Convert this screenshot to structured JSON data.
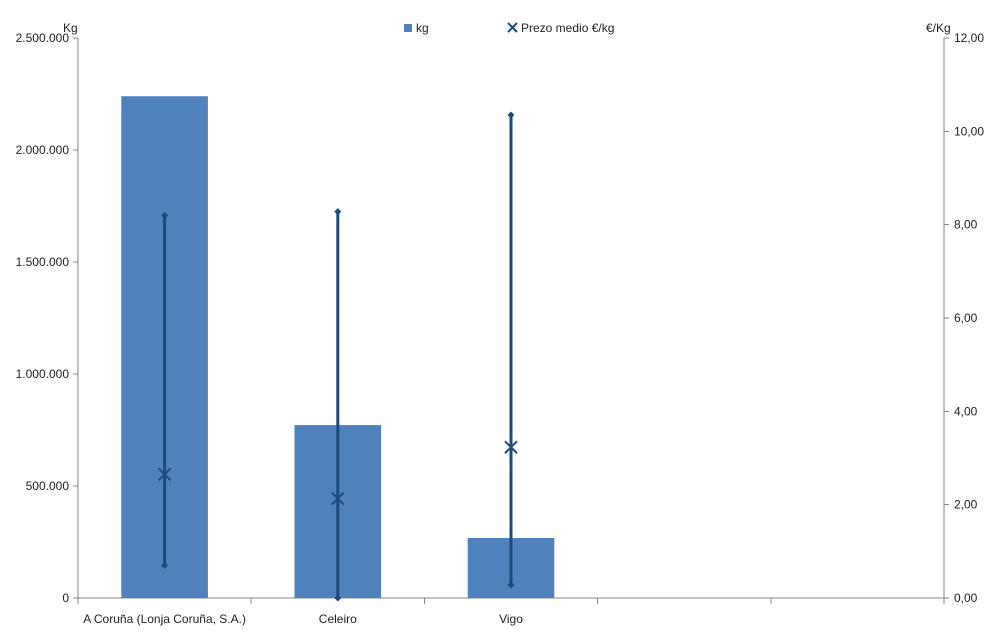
{
  "chart_data": {
    "type": "bar",
    "categories": [
      "A Coruña (Lonja Coruña, S.A.)",
      "Celeiro",
      "Vigo",
      "",
      ""
    ],
    "series": [
      {
        "name": "kg",
        "axis": "left",
        "kind": "bar",
        "color": "#4F81BD",
        "values": [
          2240000,
          772000,
          268000,
          null,
          null
        ]
      },
      {
        "name": "Prezo medio €/kg",
        "axis": "right",
        "kind": "marker",
        "marker": "x",
        "color": "#1F497D",
        "values": [
          2.65,
          2.13,
          3.23,
          null,
          null
        ],
        "min": [
          0.7,
          0.0,
          0.28,
          null,
          null
        ],
        "max": [
          8.2,
          8.28,
          10.35,
          null,
          null
        ]
      }
    ],
    "y_left": {
      "label": "Kg",
      "min": 0,
      "max": 2500000,
      "ticks": [
        0,
        500000,
        1000000,
        1500000,
        2000000,
        2500000
      ],
      "tick_labels": [
        "0",
        "500.000",
        "1.000.000",
        "1.500.000",
        "2.000.000",
        "2.500.000"
      ]
    },
    "y_right": {
      "label": "€/Kg",
      "min": 0,
      "max": 12,
      "ticks": [
        0,
        2,
        4,
        6,
        8,
        10,
        12
      ],
      "tick_labels": [
        "0,00",
        "2,00",
        "4,00",
        "6,00",
        "8,00",
        "10,00",
        "12,00"
      ]
    },
    "grid": false,
    "legend_position": "top-center",
    "legend": [
      {
        "label": "kg",
        "symbol": "square",
        "color": "#4F81BD"
      },
      {
        "label": "Prezo medio €/kg",
        "symbol": "x",
        "color": "#1F497D"
      }
    ]
  }
}
